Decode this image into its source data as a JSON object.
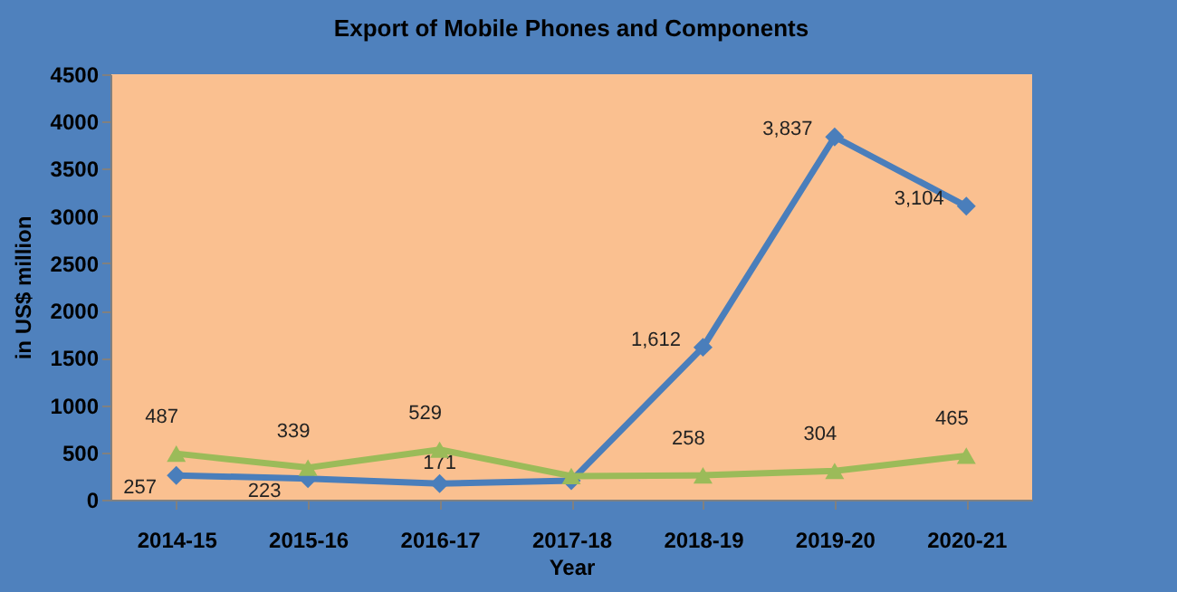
{
  "chart_data": {
    "type": "line",
    "title": "Export of Mobile Phones and Components",
    "xlabel": "Year",
    "ylabel": "in US$ million",
    "categories": [
      "2014-15",
      "2015-16",
      "2016-17",
      "2017-18",
      "2018-19",
      "2019-20",
      "2020-21"
    ],
    "series": [
      {
        "color": "#4a7ebb",
        "marker": "diamond",
        "values": [
          257,
          223,
          171,
          200,
          1612,
          3837,
          3104
        ],
        "value_labels": [
          "257",
          "223",
          "171",
          null,
          "1,612",
          "3,837",
          "3,104"
        ]
      },
      {
        "color": "#9bbb59",
        "marker": "triangle",
        "values": [
          487,
          339,
          529,
          250,
          258,
          304,
          465
        ],
        "value_labels": [
          "487",
          "339",
          "529",
          null,
          "258",
          "304",
          "465"
        ]
      }
    ],
    "ylim": [
      0,
      4500
    ],
    "yticks": [
      0,
      500,
      1000,
      1500,
      2000,
      2500,
      3000,
      3500,
      4000,
      4500
    ],
    "line_style": "solid"
  }
}
